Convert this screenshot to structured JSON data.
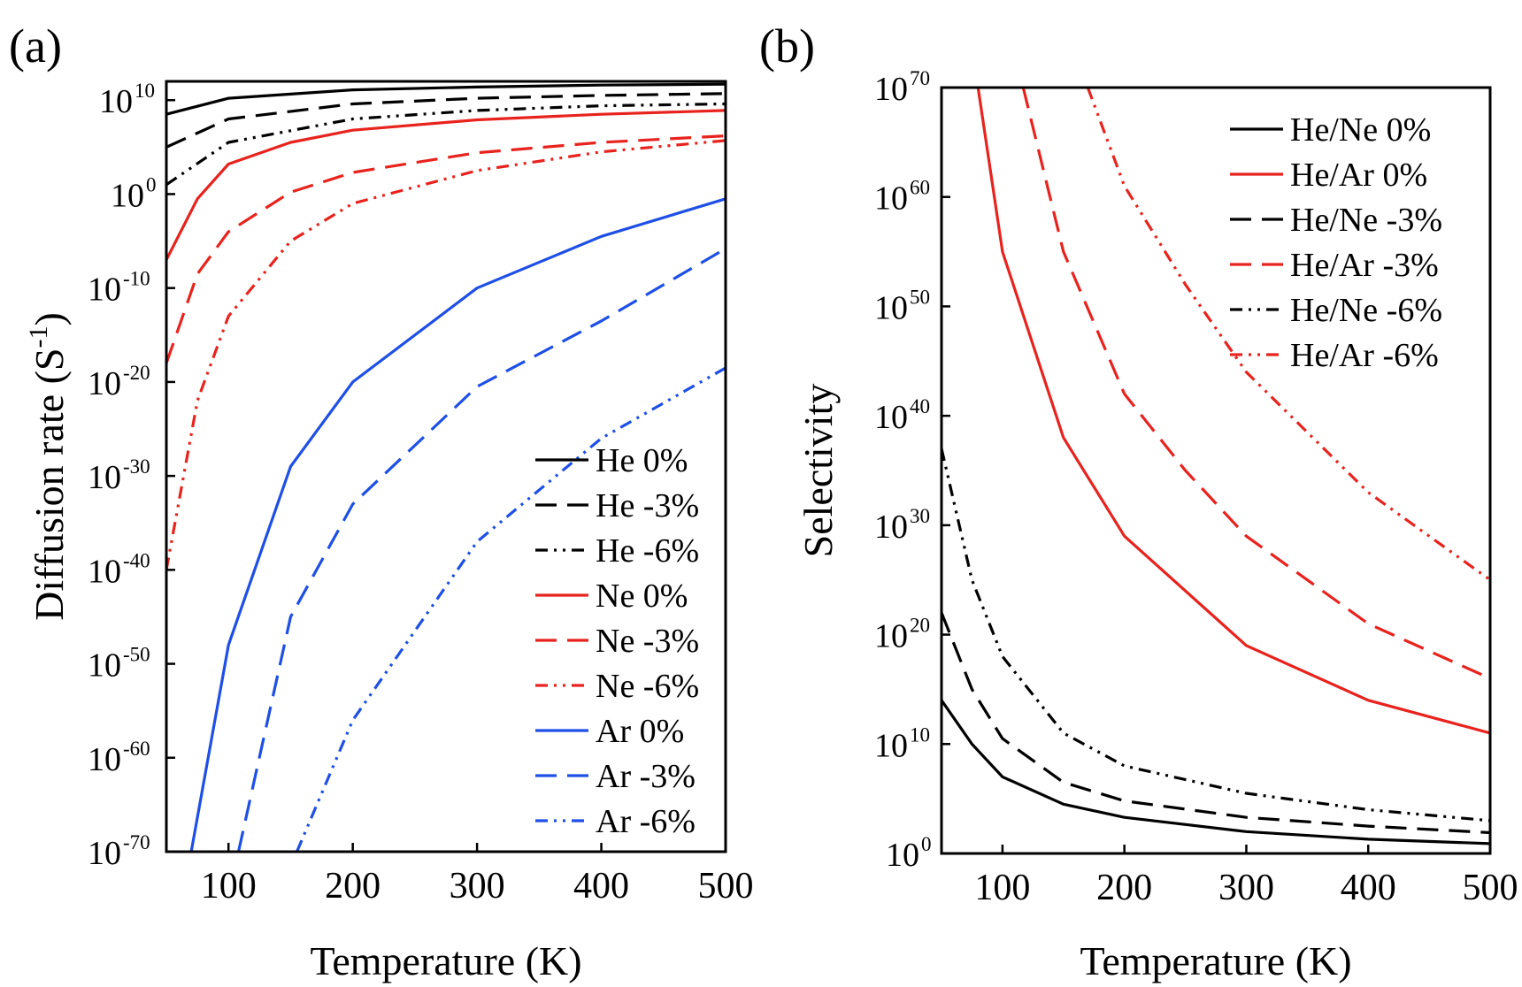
{
  "chart_data": [
    {
      "panel_label": "(a)",
      "type": "line",
      "xlabel": "Temperature (K)",
      "ylabel_main": "Diffusion rate (S",
      "ylabel_sup": "-1",
      "ylabel_close": ")",
      "xlim": [
        50,
        500
      ],
      "ylim_exp": [
        -70,
        12
      ],
      "y_scale": "log",
      "x_ticks": [
        100,
        200,
        300,
        400,
        500
      ],
      "y_tick_exps": [
        10,
        0,
        -10,
        -20,
        -30,
        -40,
        -50,
        -60,
        -70
      ],
      "legend_position": "bottom-right",
      "series": [
        {
          "name": "He  0%",
          "color": "#000000",
          "dash": "solid",
          "x": [
            50,
            100,
            200,
            300,
            400,
            500
          ],
          "log10_y": [
            8.5,
            10.2,
            11.1,
            11.4,
            11.6,
            11.7
          ]
        },
        {
          "name": "He -3%",
          "color": "#000000",
          "dash": "dash",
          "x": [
            50,
            100,
            200,
            300,
            400,
            500
          ],
          "log10_y": [
            5.0,
            8.0,
            9.6,
            10.2,
            10.5,
            10.7
          ]
        },
        {
          "name": "He -6%",
          "color": "#000000",
          "dash": "dash-dot-dot",
          "x": [
            50,
            100,
            200,
            300,
            400,
            500
          ],
          "log10_y": [
            1.0,
            5.5,
            8.0,
            8.9,
            9.4,
            9.6
          ]
        },
        {
          "name": "Ne  0%",
          "color": "#e8231e",
          "dash": "solid",
          "x": [
            50,
            75,
            100,
            150,
            200,
            300,
            400,
            500
          ],
          "log10_y": [
            -7.0,
            -0.5,
            3.2,
            5.5,
            6.8,
            7.9,
            8.5,
            8.9
          ]
        },
        {
          "name": "Ne -3%",
          "color": "#e8231e",
          "dash": "dash",
          "x": [
            50,
            75,
            100,
            150,
            200,
            300,
            400,
            500
          ],
          "log10_y": [
            -18.0,
            -8.5,
            -4.0,
            0.2,
            2.3,
            4.4,
            5.5,
            6.2
          ]
        },
        {
          "name": "Ne -6%",
          "color": "#e8231e",
          "dash": "dash-dot-dot",
          "x": [
            50,
            75,
            100,
            150,
            200,
            300,
            400,
            500
          ],
          "log10_y": [
            -40.0,
            -22.0,
            -13.0,
            -5.0,
            -1.0,
            2.5,
            4.5,
            5.7
          ]
        },
        {
          "name": "Ar  0%",
          "color": "#1e4fe6",
          "dash": "solid",
          "x": [
            70,
            100,
            150,
            200,
            300,
            400,
            500
          ],
          "log10_y": [
            -70.0,
            -48.0,
            -29.0,
            -20.0,
            -10.0,
            -4.5,
            -0.5
          ]
        },
        {
          "name": "Ar -3%",
          "color": "#1e4fe6",
          "dash": "dash",
          "x": [
            108,
            150,
            200,
            300,
            400,
            500
          ],
          "log10_y": [
            -70.0,
            -45.0,
            -33.0,
            -20.5,
            -13.5,
            -5.8
          ]
        },
        {
          "name": "Ar -6%",
          "color": "#1e4fe6",
          "dash": "dash-dot-dot",
          "x": [
            155,
            200,
            300,
            400,
            500
          ],
          "log10_y": [
            -70.0,
            -56.0,
            -37.0,
            -26.0,
            -18.5
          ]
        }
      ]
    },
    {
      "panel_label": "(b)",
      "type": "line",
      "xlabel": "Temperature (K)",
      "ylabel_main": "Selectivity",
      "xlim": [
        50,
        500
      ],
      "ylim_exp": [
        0,
        70
      ],
      "y_scale": "log",
      "x_ticks": [
        100,
        200,
        300,
        400,
        500
      ],
      "y_tick_exps": [
        70,
        60,
        50,
        40,
        30,
        20,
        10,
        0
      ],
      "legend_position": "top-right",
      "series": [
        {
          "name": "He/Ne  0%",
          "color": "#000000",
          "dash": "solid",
          "x": [
            50,
            75,
            100,
            150,
            200,
            300,
            400,
            500
          ],
          "log10_y": [
            14.0,
            10.0,
            7.0,
            4.5,
            3.3,
            2.0,
            1.3,
            0.9
          ]
        },
        {
          "name": "He/Ar   0%",
          "color": "#e8231e",
          "dash": "solid",
          "x": [
            80,
            100,
            150,
            200,
            300,
            400,
            500
          ],
          "log10_y": [
            70.0,
            55.0,
            38.0,
            29.0,
            19.0,
            14.0,
            11.0
          ]
        },
        {
          "name": "He/Ne -3%",
          "color": "#000000",
          "dash": "dash",
          "x": [
            50,
            75,
            100,
            150,
            200,
            300,
            400,
            500
          ],
          "log10_y": [
            22.0,
            15.0,
            10.5,
            6.5,
            4.8,
            3.3,
            2.5,
            1.9
          ]
        },
        {
          "name": "He/Ar -3%",
          "color": "#e8231e",
          "dash": "dash",
          "x": [
            117,
            150,
            200,
            250,
            300,
            400,
            500
          ],
          "log10_y": [
            70.0,
            55.0,
            42.0,
            35.0,
            29.0,
            21.0,
            16.0
          ]
        },
        {
          "name": "He/Ne -6%",
          "color": "#000000",
          "dash": "dash-dot-dot",
          "x": [
            50,
            75,
            100,
            150,
            200,
            300,
            400,
            500
          ],
          "log10_y": [
            37.0,
            25.0,
            18.0,
            11.0,
            8.0,
            5.5,
            4.0,
            3.0
          ]
        },
        {
          "name": "He/Ar -6%",
          "color": "#e8231e",
          "dash": "dash-dot-dot",
          "x": [
            170,
            200,
            250,
            300,
            400,
            500
          ],
          "log10_y": [
            70.0,
            61.0,
            52.0,
            44.0,
            33.0,
            25.0
          ]
        }
      ]
    }
  ]
}
